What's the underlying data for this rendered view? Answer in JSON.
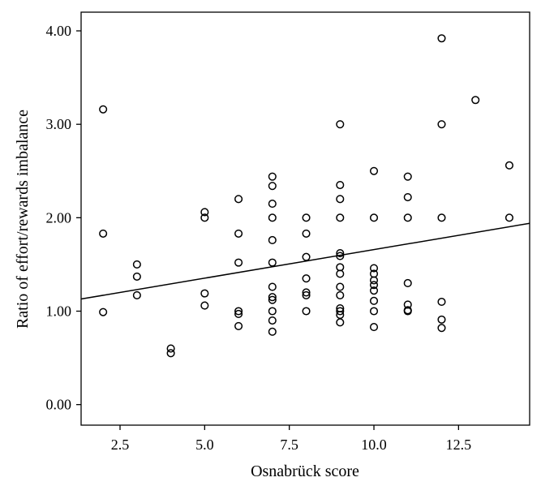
{
  "chart_data": {
    "type": "scatter",
    "title": "",
    "xlabel": "Osnabrück score",
    "ylabel": "Ratio of effort/rewards imbalance",
    "xlim": [
      1.35,
      14.6
    ],
    "ylim": [
      -0.22,
      4.2
    ],
    "x_ticks": [
      2.5,
      5.0,
      7.5,
      10.0,
      12.5
    ],
    "x_tick_labels": [
      "2.5",
      "5.0",
      "7.5",
      "10.0",
      "12.5"
    ],
    "y_ticks": [
      0.0,
      1.0,
      2.0,
      3.0,
      4.0
    ],
    "y_tick_labels": [
      "0.00",
      "1.00",
      "2.00",
      "3.00",
      "4.00"
    ],
    "grid": false,
    "points": [
      [
        2,
        3.16
      ],
      [
        2,
        1.83
      ],
      [
        2,
        0.99
      ],
      [
        3,
        1.5
      ],
      [
        3,
        1.37
      ],
      [
        3,
        1.17
      ],
      [
        4,
        0.6
      ],
      [
        4,
        0.55
      ],
      [
        5,
        2.06
      ],
      [
        5,
        2.0
      ],
      [
        5,
        1.19
      ],
      [
        5,
        1.06
      ],
      [
        6,
        2.2
      ],
      [
        6,
        1.83
      ],
      [
        6,
        1.52
      ],
      [
        6,
        1.0
      ],
      [
        6,
        0.97
      ],
      [
        6,
        0.84
      ],
      [
        7,
        2.44
      ],
      [
        7,
        2.34
      ],
      [
        7,
        2.15
      ],
      [
        7,
        2.0
      ],
      [
        7,
        1.76
      ],
      [
        7,
        1.52
      ],
      [
        7,
        1.26
      ],
      [
        7,
        1.15
      ],
      [
        7,
        1.12
      ],
      [
        7,
        1.0
      ],
      [
        7,
        0.9
      ],
      [
        7,
        0.78
      ],
      [
        8,
        2.0
      ],
      [
        8,
        1.83
      ],
      [
        8,
        1.58
      ],
      [
        8,
        1.35
      ],
      [
        8,
        1.2
      ],
      [
        8,
        1.17
      ],
      [
        8,
        1.0
      ],
      [
        9,
        3.0
      ],
      [
        9,
        2.35
      ],
      [
        9,
        2.2
      ],
      [
        9,
        2.0
      ],
      [
        9,
        1.62
      ],
      [
        9,
        1.59
      ],
      [
        9,
        1.47
      ],
      [
        9,
        1.4
      ],
      [
        9,
        1.26
      ],
      [
        9,
        1.17
      ],
      [
        9,
        1.03
      ],
      [
        9,
        1.0
      ],
      [
        9,
        0.96
      ],
      [
        9,
        0.88
      ],
      [
        10,
        2.5
      ],
      [
        10,
        2.0
      ],
      [
        10,
        1.46
      ],
      [
        10,
        1.4
      ],
      [
        10,
        1.33
      ],
      [
        10,
        1.28
      ],
      [
        10,
        1.22
      ],
      [
        10,
        1.11
      ],
      [
        10,
        1.0
      ],
      [
        10,
        0.83
      ],
      [
        11,
        2.44
      ],
      [
        11,
        2.22
      ],
      [
        11,
        2.0
      ],
      [
        11,
        1.3
      ],
      [
        11,
        1.07
      ],
      [
        11,
        1.01
      ],
      [
        11,
        1.0
      ],
      [
        12,
        3.92
      ],
      [
        12,
        3.0
      ],
      [
        12,
        2.0
      ],
      [
        12,
        1.1
      ],
      [
        12,
        0.91
      ],
      [
        12,
        0.82
      ],
      [
        13,
        3.26
      ],
      [
        14,
        2.56
      ],
      [
        14,
        2.0
      ]
    ],
    "fit_line": {
      "x": [
        1.35,
        14.6
      ],
      "y": [
        1.13,
        1.94
      ]
    }
  }
}
